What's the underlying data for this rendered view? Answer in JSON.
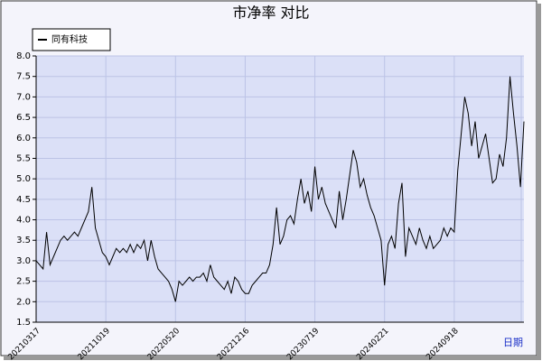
{
  "chart_data": {
    "type": "line",
    "title": "市净率  对比",
    "x_label": "日期",
    "categories": [
      "20210317",
      null,
      null,
      null,
      null,
      null,
      null,
      null,
      null,
      null,
      null,
      null,
      null,
      null,
      null,
      null,
      null,
      null,
      null,
      null,
      "20211019",
      null,
      null,
      null,
      null,
      null,
      null,
      null,
      null,
      null,
      null,
      null,
      null,
      null,
      null,
      null,
      null,
      null,
      null,
      null,
      "20220520",
      null,
      null,
      null,
      null,
      null,
      null,
      null,
      null,
      null,
      null,
      null,
      null,
      null,
      null,
      null,
      null,
      null,
      null,
      null,
      "20221216",
      null,
      null,
      null,
      null,
      null,
      null,
      null,
      null,
      null,
      null,
      null,
      null,
      null,
      null,
      null,
      null,
      null,
      null,
      null,
      "20230719",
      null,
      null,
      null,
      null,
      null,
      null,
      null,
      null,
      null,
      null,
      null,
      null,
      null,
      null,
      null,
      null,
      null,
      null,
      null,
      "20240221",
      null,
      null,
      null,
      null,
      null,
      null,
      null,
      null,
      null,
      null,
      null,
      null,
      null,
      null,
      null,
      null,
      null,
      null,
      null,
      "20240918",
      null,
      null,
      null,
      null,
      null,
      null,
      null,
      null,
      null,
      null,
      null,
      null,
      null,
      null,
      null,
      null,
      null,
      null,
      null,
      null
    ],
    "series": [
      {
        "name": "同有科技",
        "color": "#000000",
        "values": [
          3.0,
          2.9,
          2.8,
          3.7,
          2.9,
          3.1,
          3.3,
          3.5,
          3.6,
          3.5,
          3.6,
          3.7,
          3.6,
          3.8,
          4.0,
          4.2,
          4.8,
          3.8,
          3.5,
          3.2,
          3.1,
          2.9,
          3.1,
          3.3,
          3.2,
          3.3,
          3.2,
          3.4,
          3.2,
          3.4,
          3.3,
          3.5,
          3.0,
          3.5,
          3.1,
          2.8,
          2.7,
          2.6,
          2.5,
          2.3,
          2.0,
          2.5,
          2.4,
          2.5,
          2.6,
          2.5,
          2.6,
          2.6,
          2.7,
          2.5,
          2.9,
          2.6,
          2.5,
          2.4,
          2.3,
          2.5,
          2.2,
          2.6,
          2.5,
          2.3,
          2.2,
          2.2,
          2.4,
          2.5,
          2.6,
          2.7,
          2.7,
          2.9,
          3.4,
          4.3,
          3.4,
          3.6,
          4.0,
          4.1,
          3.9,
          4.5,
          5.0,
          4.4,
          4.7,
          4.2,
          5.3,
          4.5,
          4.8,
          4.4,
          4.2,
          4.0,
          3.8,
          4.7,
          4.0,
          4.5,
          5.1,
          5.7,
          5.4,
          4.8,
          5.0,
          4.6,
          4.3,
          4.1,
          3.8,
          3.5,
          2.4,
          3.4,
          3.6,
          3.3,
          4.4,
          4.9,
          3.1,
          3.8,
          3.6,
          3.4,
          3.8,
          3.5,
          3.3,
          3.6,
          3.3,
          3.4,
          3.5,
          3.8,
          3.6,
          3.8,
          3.7,
          5.2,
          6.1,
          7.0,
          6.6,
          5.8,
          6.4,
          5.5,
          5.8,
          6.1,
          5.5,
          4.9,
          5.0,
          5.6,
          5.3,
          6.0,
          7.5,
          6.6,
          5.8,
          4.8,
          6.4
        ]
      }
    ],
    "ylim": [
      1.5,
      8.0
    ],
    "yticks": [
      1.5,
      {
        "value": 2,
        "label": "2.0"
      },
      2.5,
      {
        "value": 3,
        "label": "3.0"
      },
      3.5,
      {
        "value": 4,
        "label": "4.0"
      },
      4.5,
      {
        "value": 5,
        "label": "5.0"
      },
      5.5,
      {
        "value": 6,
        "label": "6.0"
      },
      6.5,
      {
        "value": 7,
        "label": "7.0"
      },
      7.5,
      {
        "value": 8,
        "label": "8.0"
      }
    ],
    "grid": true,
    "legend": "upper left"
  }
}
